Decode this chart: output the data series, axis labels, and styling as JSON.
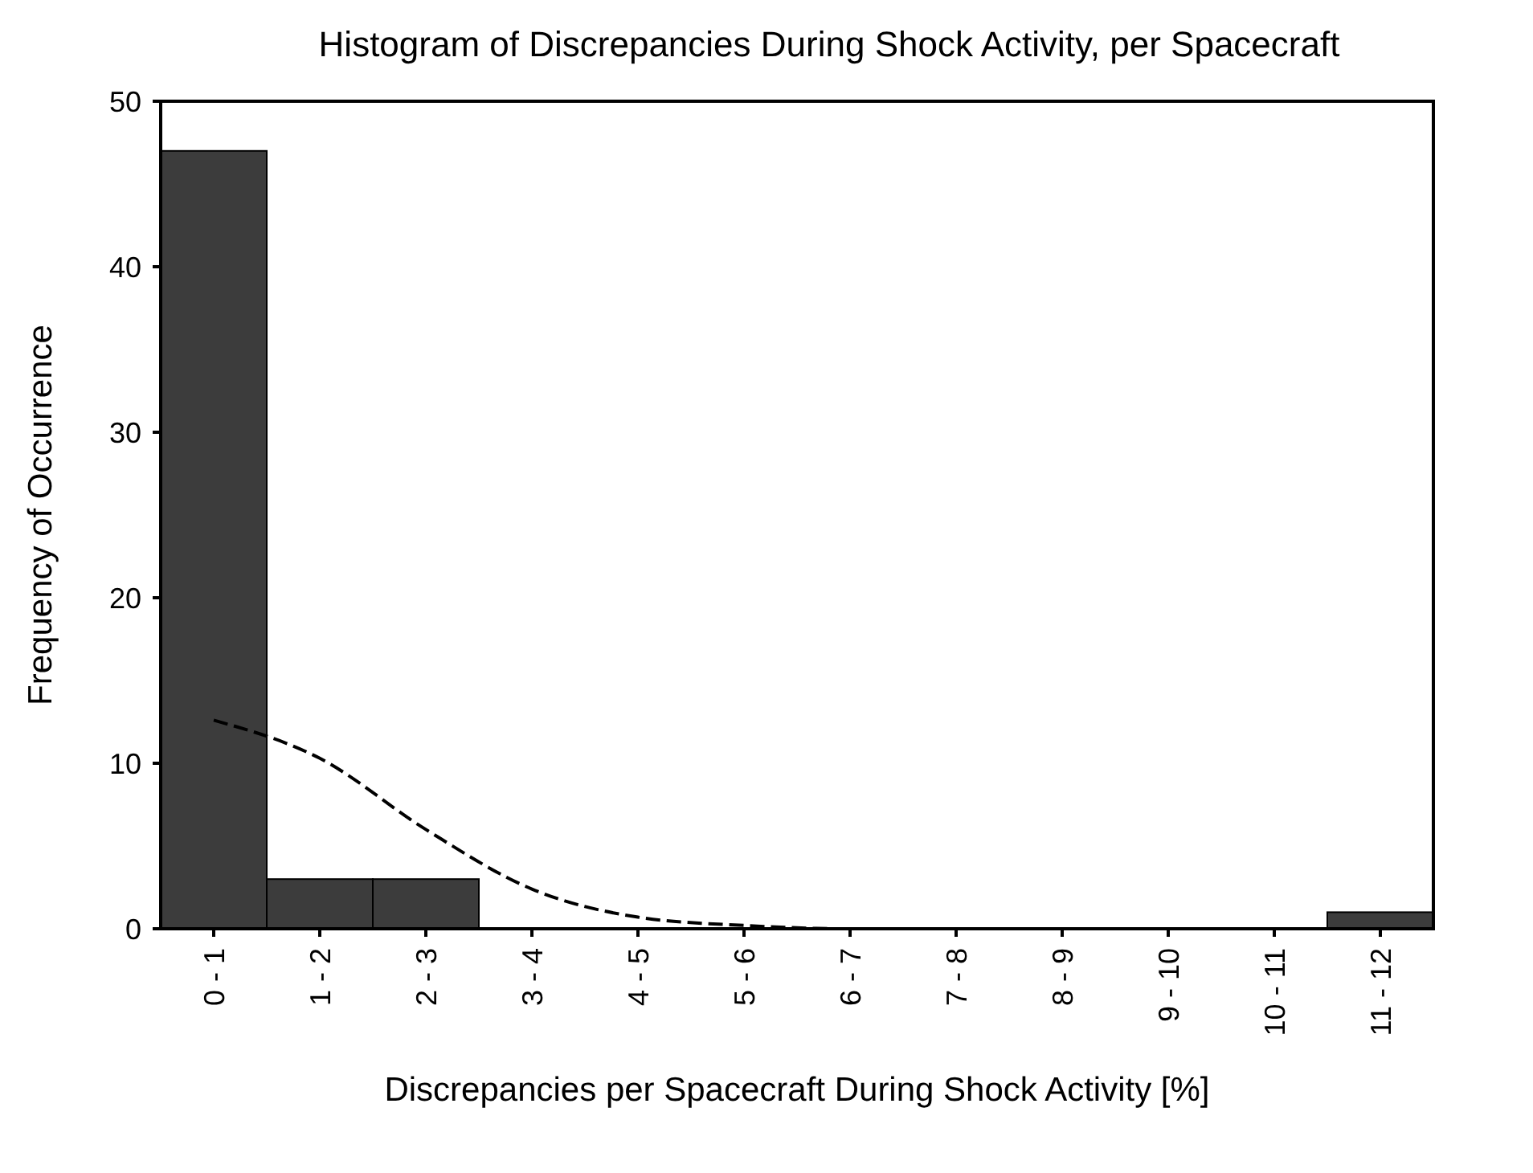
{
  "chart_data": {
    "type": "bar",
    "title": "Histogram of Discrepancies During Shock Activity, per Spacecraft",
    "xlabel": "Discrepancies per Spacecraft During Shock Activity [%]",
    "ylabel": "Frequency of Occurrence",
    "categories": [
      "0 - 1",
      "1 - 2",
      "2 - 3",
      "3 - 4",
      "4 - 5",
      "5 - 6",
      "6 - 7",
      "7 - 8",
      "8 - 9",
      "9 - 10",
      "10 - 11",
      "11 - 12"
    ],
    "series": [
      {
        "color": "#3c3c3c",
        "values": [
          47,
          3,
          3,
          0,
          0,
          0,
          0,
          0,
          0,
          0,
          0,
          1
        ]
      },
      {
        "type": "line",
        "color": "#000000",
        "line_style": "dashed",
        "values": [
          12.6,
          10.3,
          6.0,
          2.4,
          0.7,
          0.2,
          0,
          0,
          0,
          0,
          0,
          0
        ]
      }
    ],
    "ylim": [
      0,
      50
    ],
    "yticks": [
      0,
      10,
      20,
      30,
      40,
      50
    ]
  }
}
